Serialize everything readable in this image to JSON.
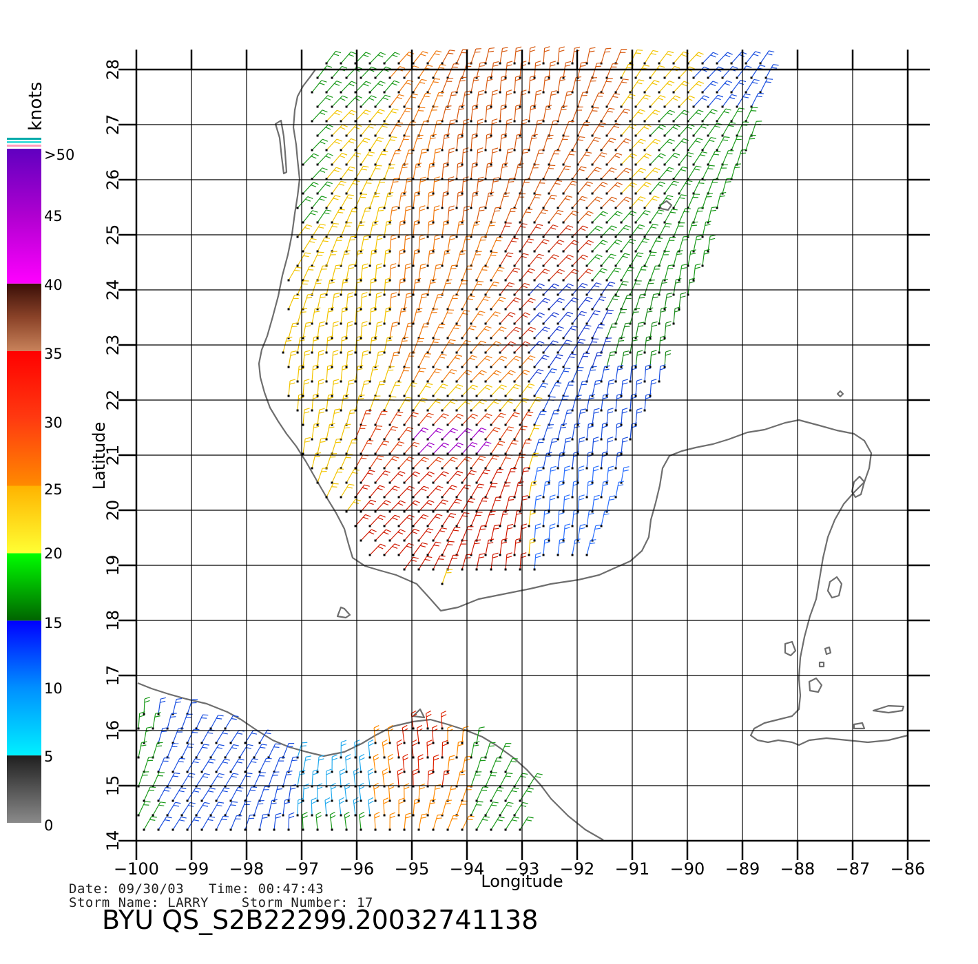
{
  "map": {
    "xlabel": "Longitude",
    "ylabel": "Latitude",
    "lon_ticks": [
      -100,
      -99,
      -98,
      -97,
      -96,
      -95,
      -94,
      -93,
      -92,
      -91,
      -90,
      -89,
      -88,
      -87,
      -86
    ],
    "lat_ticks": [
      14,
      15,
      16,
      17,
      18,
      19,
      20,
      21,
      22,
      23,
      24,
      25,
      26,
      27,
      28
    ],
    "lon_range": [
      -100,
      -85.6
    ],
    "lat_range": [
      14,
      28
    ]
  },
  "legend": {
    "unit": "knots",
    "labels": [
      ">50",
      "45",
      "40",
      "35",
      "30",
      "25",
      "20",
      "15",
      "10",
      "5",
      "0"
    ],
    "bands": [
      {
        "from": 0,
        "to": 5,
        "colors": [
          "#8a8a8a",
          "#1f1f1f"
        ]
      },
      {
        "from": 5,
        "to": 15,
        "colors": [
          "#00f0ff",
          "#0000ff"
        ]
      },
      {
        "from": 15,
        "to": 20,
        "colors": [
          "#006400",
          "#00ff00"
        ]
      },
      {
        "from": 20,
        "to": 25,
        "colors": [
          "#ffff33",
          "#ffb300"
        ]
      },
      {
        "from": 25,
        "to": 35,
        "colors": [
          "#ff8a00",
          "#ff0000"
        ]
      },
      {
        "from": 35,
        "to": 40,
        "colors": [
          "#c8825a",
          "#3a0f08"
        ]
      },
      {
        "from": 40,
        "to": 50,
        "colors": [
          "#ff00ff",
          "#6000c0"
        ]
      }
    ]
  },
  "footer": {
    "date_label": "Date:",
    "date": "09/30/03",
    "time_label": "Time:",
    "time": "00:47:43",
    "storm_name_label": "Storm  Name:",
    "storm_name": "LARRY",
    "storm_number_label": "Storm  Number:",
    "storm_number": "17",
    "title": "BYU  QS_S2B22299.20032741138"
  },
  "colors": {
    "coast": "#6e6e6e",
    "grid": "#000000"
  }
}
